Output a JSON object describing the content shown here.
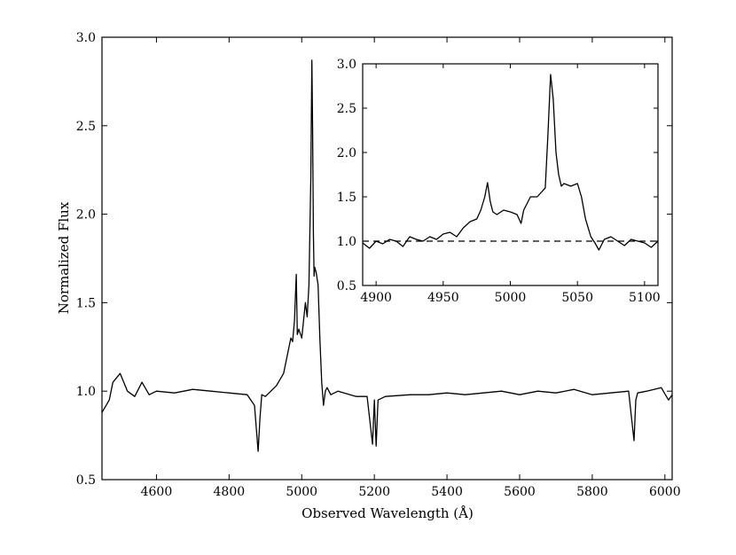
{
  "chart_data": [
    {
      "id": "main",
      "type": "line",
      "xlabel": "Observed Wavelength (Å)",
      "ylabel": "Normalized Flux",
      "xlim": [
        4450,
        6020
      ],
      "ylim": [
        0.5,
        3.0
      ],
      "xticks": [
        4600,
        4800,
        5000,
        5200,
        5400,
        5600,
        5800,
        6000
      ],
      "xtick_labels": [
        "4600",
        "4800",
        "5000",
        "5200",
        "5400",
        "5600",
        "5800",
        "6000"
      ],
      "yticks": [
        0.5,
        1.0,
        1.5,
        2.0,
        2.5,
        3.0
      ],
      "ytick_labels": [
        "0.5",
        "1.0",
        "1.5",
        "2.0",
        "2.5",
        "3.0"
      ],
      "grid": false,
      "line_color": "#000000",
      "series": [
        {
          "x": [
            4450,
            4470,
            4480,
            4500,
            4520,
            4540,
            4560,
            4580,
            4600,
            4650,
            4700,
            4750,
            4800,
            4850,
            4870,
            4880,
            4885,
            4890,
            4900,
            4930,
            4950,
            4960,
            4970,
            4975,
            4980,
            4985,
            4988,
            4992,
            5000,
            5010,
            5015,
            5020,
            5025,
            5028,
            5030,
            5032,
            5034,
            5036,
            5040,
            5045,
            5050,
            5055,
            5060,
            5065,
            5070,
            5080,
            5100,
            5150,
            5180,
            5195,
            5200,
            5205,
            5210,
            5230,
            5300,
            5350,
            5400,
            5450,
            5500,
            5550,
            5600,
            5650,
            5700,
            5750,
            5800,
            5850,
            5900,
            5915,
            5920,
            5925,
            5950,
            5990,
            6010,
            6020
          ],
          "y": [
            0.88,
            0.95,
            1.05,
            1.1,
            1.0,
            0.97,
            1.05,
            0.98,
            1.0,
            0.99,
            1.01,
            1.0,
            0.99,
            0.98,
            0.92,
            0.66,
            0.85,
            0.98,
            0.97,
            1.03,
            1.1,
            1.2,
            1.3,
            1.28,
            1.4,
            1.66,
            1.32,
            1.35,
            1.3,
            1.5,
            1.42,
            1.6,
            2.2,
            2.87,
            2.5,
            1.9,
            1.65,
            1.7,
            1.67,
            1.6,
            1.3,
            1.05,
            0.92,
            1.0,
            1.02,
            0.98,
            1.0,
            0.97,
            0.97,
            0.7,
            0.95,
            0.69,
            0.95,
            0.97,
            0.98,
            0.98,
            0.99,
            0.98,
            0.99,
            1.0,
            0.98,
            1.0,
            0.99,
            1.01,
            0.98,
            0.99,
            1.0,
            0.72,
            0.95,
            0.99,
            1.0,
            1.02,
            0.95,
            0.98
          ]
        }
      ]
    },
    {
      "id": "inset",
      "type": "line",
      "xlim": [
        4890,
        5110
      ],
      "ylim": [
        0.5,
        3.0
      ],
      "xticks": [
        4900,
        4950,
        5000,
        5050,
        5100
      ],
      "xtick_labels": [
        "4900",
        "4950",
        "5000",
        "5050",
        "5100"
      ],
      "yticks": [
        0.5,
        1.0,
        1.5,
        2.0,
        2.5,
        3.0
      ],
      "ytick_labels": [
        "0.5",
        "1.0",
        "1.5",
        "2.0",
        "2.5",
        "3.0"
      ],
      "grid": false,
      "reference_line": {
        "y": 1.0,
        "style": "dashed"
      },
      "series": [
        {
          "x": [
            4890,
            4895,
            4900,
            4905,
            4910,
            4915,
            4920,
            4925,
            4930,
            4935,
            4940,
            4945,
            4950,
            4955,
            4960,
            4965,
            4970,
            4975,
            4978,
            4981,
            4983,
            4985,
            4987,
            4990,
            4995,
            5000,
            5005,
            5008,
            5010,
            5015,
            5020,
            5023,
            5026,
            5028,
            5030,
            5032,
            5034,
            5036,
            5038,
            5040,
            5045,
            5050,
            5053,
            5056,
            5060,
            5063,
            5066,
            5070,
            5075,
            5080,
            5085,
            5090,
            5095,
            5100,
            5105,
            5110
          ],
          "y": [
            0.98,
            0.92,
            1.0,
            0.97,
            1.02,
            1.0,
            0.94,
            1.05,
            1.02,
            1.0,
            1.05,
            1.02,
            1.08,
            1.1,
            1.05,
            1.15,
            1.22,
            1.25,
            1.35,
            1.5,
            1.66,
            1.45,
            1.33,
            1.3,
            1.35,
            1.33,
            1.3,
            1.2,
            1.35,
            1.5,
            1.5,
            1.55,
            1.6,
            2.2,
            2.88,
            2.6,
            2.0,
            1.75,
            1.62,
            1.65,
            1.62,
            1.65,
            1.5,
            1.25,
            1.05,
            0.98,
            0.9,
            1.02,
            1.05,
            1.0,
            0.95,
            1.02,
            1.0,
            0.98,
            0.93,
            1.0
          ]
        }
      ]
    }
  ]
}
